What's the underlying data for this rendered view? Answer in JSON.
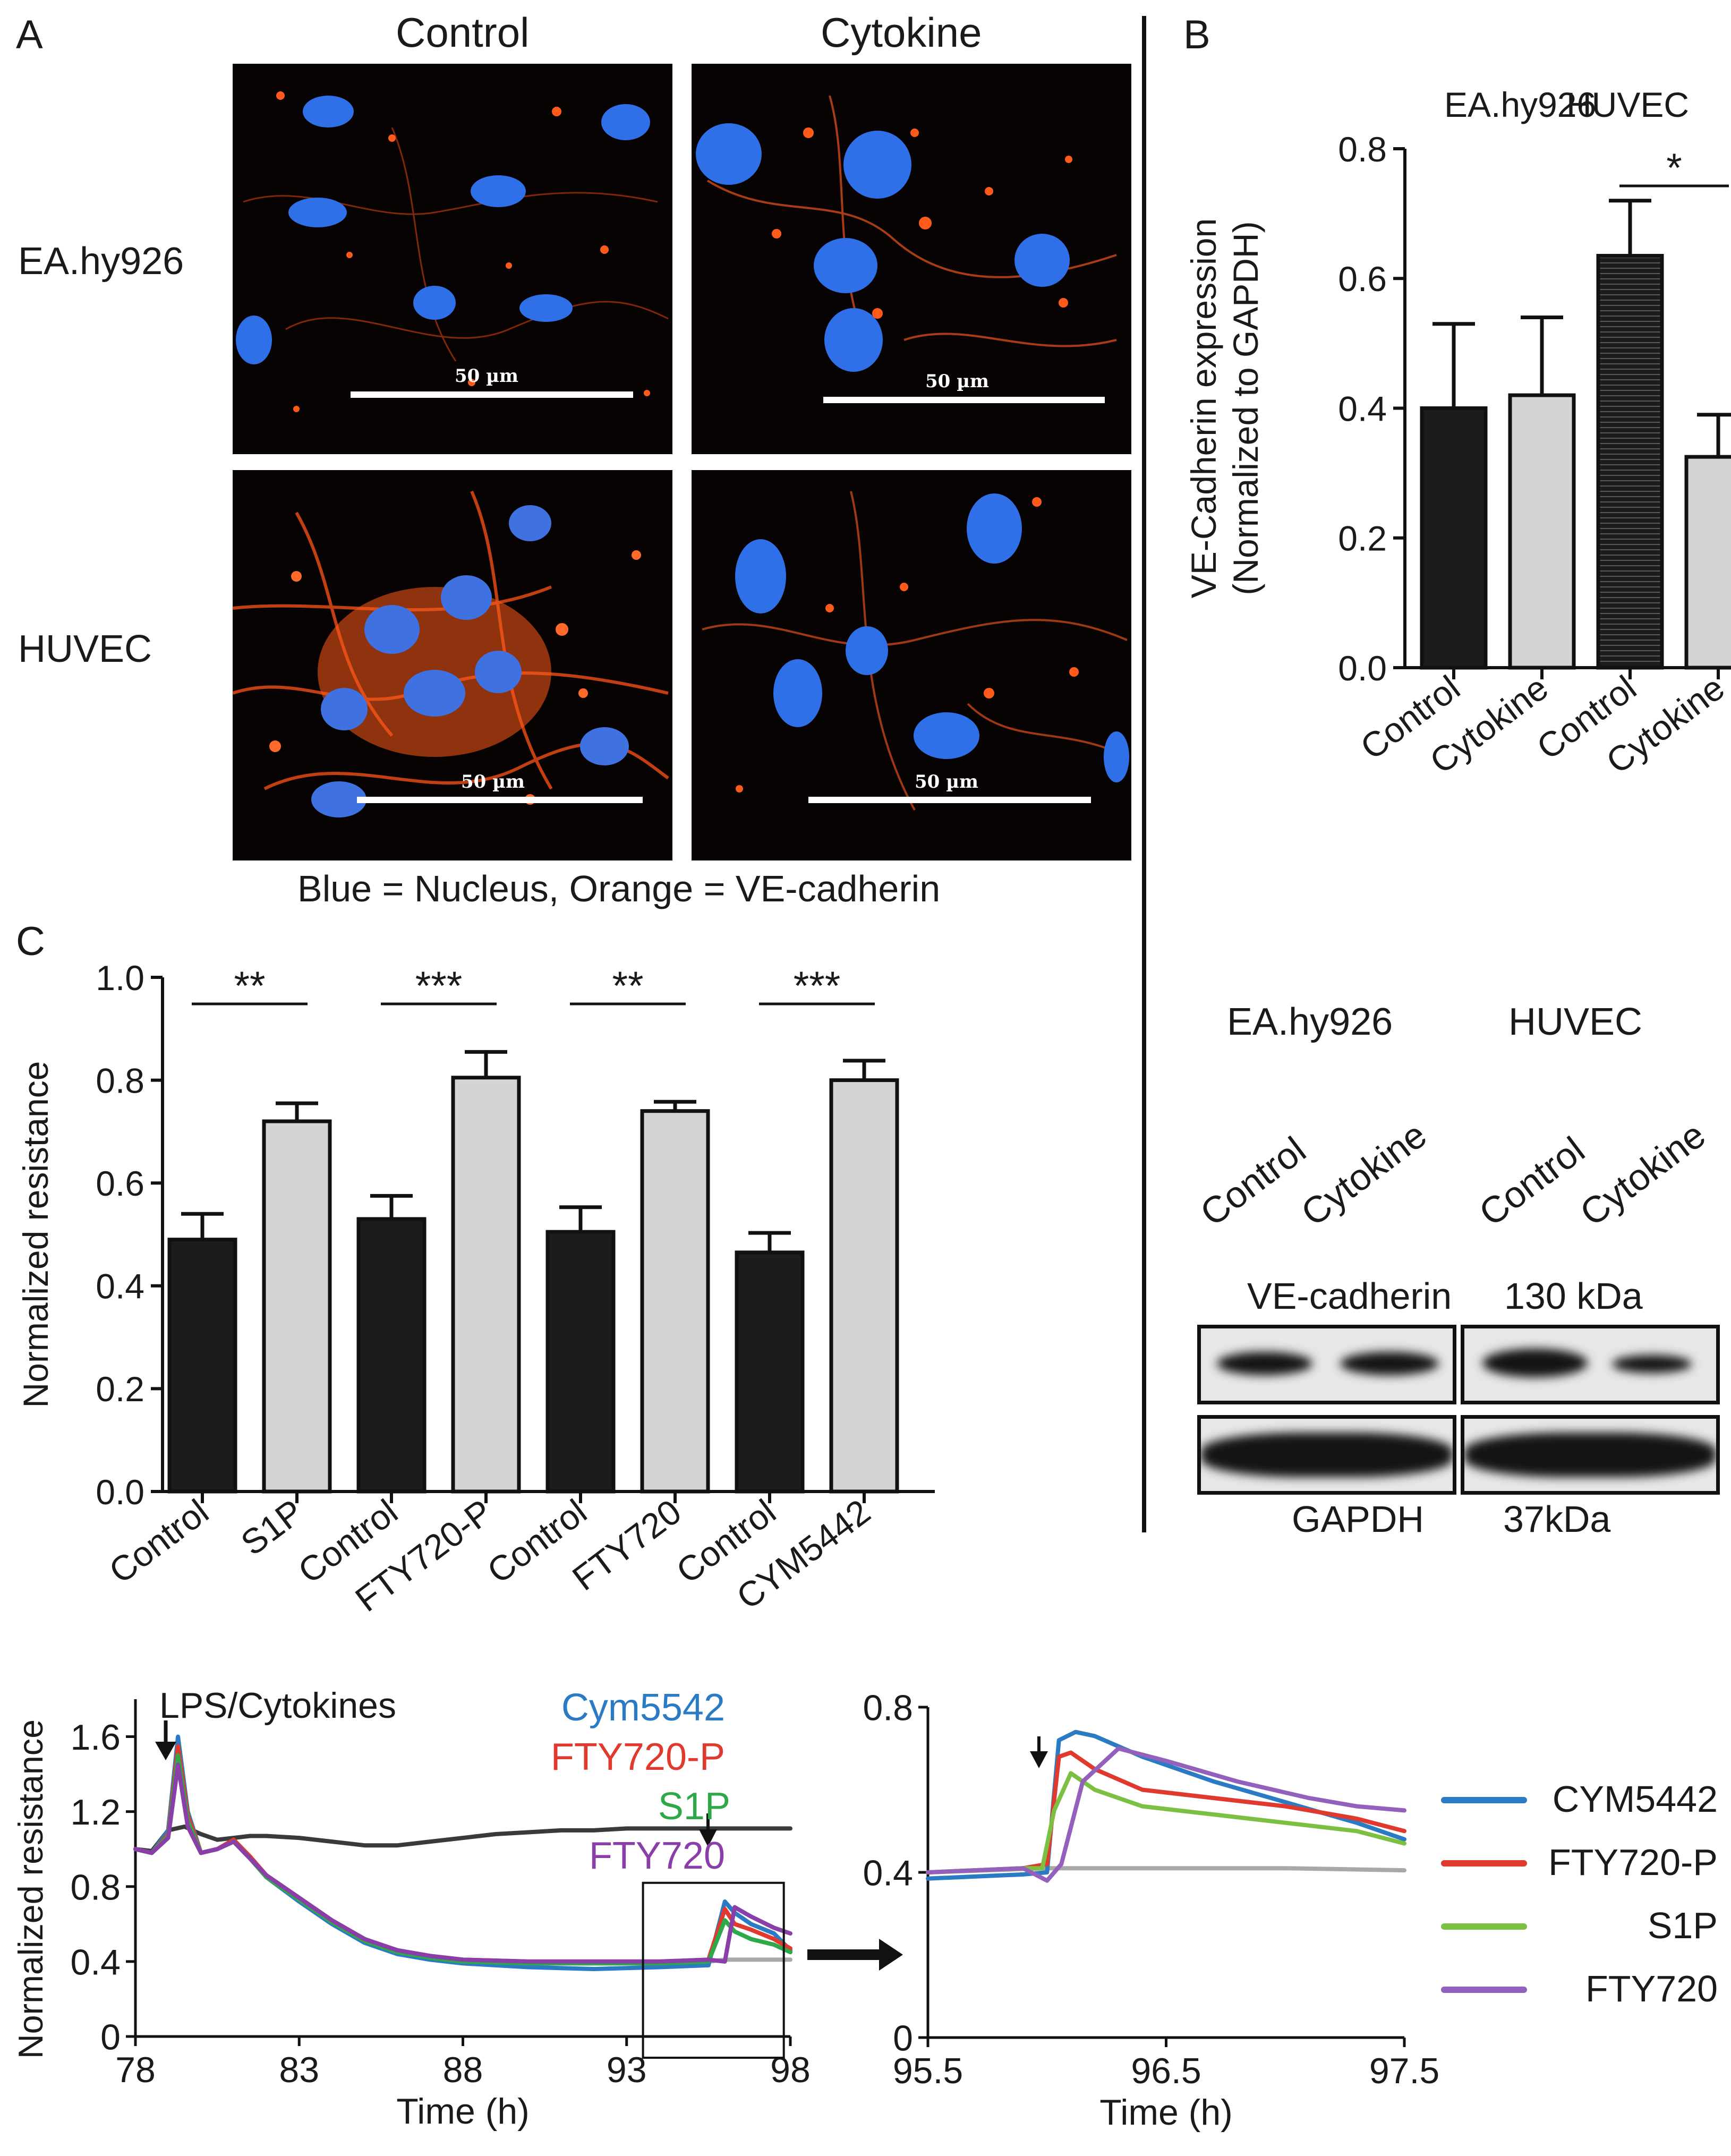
{
  "panel_a": {
    "letter": "A",
    "col_labels": [
      "Control",
      "Cytokine"
    ],
    "row_labels": [
      "EA.hy926",
      "HUVEC"
    ],
    "scale_label": "50 µm",
    "caption": "Blue = Nucleus, Orange = VE-cadherin",
    "colors": {
      "nucleus": "#2f6fe8",
      "cadherin": "#ff5a1a",
      "background": "#070302"
    }
  },
  "panel_b": {
    "letter": "B",
    "blot": {
      "group_labels": [
        "EA.hy926",
        "HUVEC"
      ],
      "lane_labels": [
        "Control",
        "Cytokine",
        "Control",
        "Cytokine"
      ],
      "top_band": "VE-cadherin",
      "top_kda": "130 kDa",
      "bottom_band": "GAPDH",
      "bottom_kda": "37kDa"
    }
  },
  "panel_c": {
    "letter": "C"
  },
  "chart_data": [
    {
      "id": "b-bar",
      "type": "bar",
      "group_labels": [
        "EA.hy926",
        "HUVEC"
      ],
      "categories": [
        "Control",
        "Cytokine",
        "Control",
        "Cytokine"
      ],
      "values": [
        0.4,
        0.42,
        0.635,
        0.325
      ],
      "errors": [
        0.13,
        0.12,
        0.085,
        0.065
      ],
      "fills": [
        "#1c1c1c",
        "#d4d4d4",
        "hatch",
        "#d4d4d4"
      ],
      "ylabel": "VE-Cadherin expression",
      "ylabel2": "(Normalized to GAPDH)",
      "ylim": [
        0,
        0.8
      ],
      "yticks": [
        "0.0",
        "0.2",
        "0.4",
        "0.6",
        "0.8"
      ],
      "significance": [
        {
          "bars": [
            2,
            3
          ],
          "label": "*"
        }
      ]
    },
    {
      "id": "c-bar",
      "type": "bar",
      "categories": [
        "Control",
        "S1P",
        "Control",
        "FTY720-P",
        "Control",
        "FTY720",
        "Control",
        "CYM5442"
      ],
      "values": [
        0.49,
        0.72,
        0.53,
        0.805,
        0.505,
        0.74,
        0.465,
        0.8
      ],
      "errors": [
        0.05,
        0.035,
        0.045,
        0.05,
        0.048,
        0.018,
        0.038,
        0.038
      ],
      "fills": [
        "#1c1c1c",
        "#d4d4d4",
        "#1c1c1c",
        "#d4d4d4",
        "#1c1c1c",
        "#d4d4d4",
        "#1c1c1c",
        "#d4d4d4"
      ],
      "ylabel": "Normalized resistance",
      "ylim": [
        0,
        1.0
      ],
      "yticks": [
        "0.0",
        "0.2",
        "0.4",
        "0.6",
        "0.8",
        "1.0"
      ],
      "significance": [
        {
          "bars": [
            0,
            1
          ],
          "label": "**"
        },
        {
          "bars": [
            2,
            3
          ],
          "label": "***"
        },
        {
          "bars": [
            4,
            5
          ],
          "label": "**"
        },
        {
          "bars": [
            6,
            7
          ],
          "label": "***"
        }
      ]
    },
    {
      "id": "d-line-full",
      "type": "line",
      "xlabel": "Time (h)",
      "ylabel": "Normalized resistance",
      "xlim": [
        78,
        98
      ],
      "ylim": [
        0,
        1.8
      ],
      "xticks": [
        "78",
        "83",
        "88",
        "93",
        "98"
      ],
      "yticks": [
        "0",
        "0.4",
        "0.8",
        "1.2",
        "1.6"
      ],
      "annotation": "LPS/Cytokines",
      "legend_text": [
        "Cym5542",
        "FTY720-P",
        "S1P",
        "FTY720"
      ],
      "legend_colors": [
        "#2a7bc4",
        "#e03a2f",
        "#2fa84a",
        "#8a3fa8"
      ],
      "series": [
        {
          "color": "#2a7bc4",
          "x": [
            78,
            78.5,
            79,
            79.3,
            79.6,
            80,
            80.5,
            81,
            81.5,
            82,
            83,
            84,
            85,
            86,
            87,
            88,
            90,
            92,
            94,
            95.5,
            96,
            96.3,
            96.8,
            97.5,
            98
          ],
          "y": [
            1.0,
            0.98,
            1.1,
            1.6,
            1.2,
            0.98,
            1.0,
            1.05,
            0.95,
            0.85,
            0.72,
            0.6,
            0.5,
            0.44,
            0.41,
            0.39,
            0.37,
            0.36,
            0.37,
            0.38,
            0.72,
            0.66,
            0.6,
            0.55,
            0.46
          ]
        },
        {
          "color": "#e03a2f",
          "x": [
            78,
            78.5,
            79,
            79.3,
            79.6,
            80,
            80.5,
            81,
            81.5,
            82,
            83,
            84,
            85,
            86,
            87,
            88,
            90,
            92,
            94,
            95.5,
            96,
            96.3,
            96.8,
            97.5,
            98
          ],
          "y": [
            1.0,
            0.98,
            1.08,
            1.55,
            1.18,
            0.98,
            1.0,
            1.05,
            0.96,
            0.86,
            0.74,
            0.62,
            0.52,
            0.46,
            0.43,
            0.41,
            0.4,
            0.4,
            0.4,
            0.41,
            0.68,
            0.6,
            0.57,
            0.52,
            0.47
          ]
        },
        {
          "color": "#2fa84a",
          "x": [
            78,
            78.5,
            79,
            79.3,
            79.6,
            80,
            80.5,
            81,
            81.5,
            82,
            83,
            84,
            85,
            86,
            87,
            88,
            90,
            92,
            94,
            95.5,
            96,
            96.3,
            96.8,
            97.5,
            98
          ],
          "y": [
            1.0,
            0.98,
            1.07,
            1.5,
            1.15,
            0.98,
            1.0,
            1.04,
            0.95,
            0.85,
            0.73,
            0.61,
            0.51,
            0.45,
            0.42,
            0.4,
            0.39,
            0.39,
            0.39,
            0.4,
            0.62,
            0.56,
            0.52,
            0.49,
            0.45
          ]
        },
        {
          "color": "#8a3fa8",
          "x": [
            78,
            78.5,
            79,
            79.3,
            79.6,
            80,
            80.5,
            81,
            81.5,
            82,
            83,
            84,
            85,
            86,
            87,
            88,
            90,
            92,
            94,
            95.5,
            96,
            96.3,
            96.8,
            97.5,
            98
          ],
          "y": [
            1.0,
            0.98,
            1.06,
            1.45,
            1.12,
            0.98,
            1.0,
            1.04,
            0.95,
            0.86,
            0.74,
            0.62,
            0.52,
            0.46,
            0.43,
            0.41,
            0.4,
            0.4,
            0.4,
            0.41,
            0.4,
            0.69,
            0.64,
            0.58,
            0.55
          ]
        },
        {
          "color": "#3a3a3a",
          "x": [
            78,
            78.5,
            79,
            79.5,
            80,
            80.5,
            81,
            81.5,
            82,
            83,
            84,
            85,
            86,
            87,
            88,
            89,
            90,
            91,
            92,
            93,
            94,
            95,
            96,
            97,
            98
          ],
          "y": [
            1.0,
            0.99,
            1.1,
            1.12,
            1.08,
            1.05,
            1.06,
            1.07,
            1.07,
            1.06,
            1.04,
            1.02,
            1.02,
            1.04,
            1.06,
            1.08,
            1.09,
            1.1,
            1.1,
            1.11,
            1.11,
            1.11,
            1.11,
            1.11,
            1.11
          ]
        },
        {
          "color": "#a8a8a8",
          "x": [
            95.5,
            96,
            96.5,
            97,
            98
          ],
          "y": [
            0.4,
            0.41,
            0.41,
            0.41,
            0.41
          ]
        }
      ]
    },
    {
      "id": "d-line-zoom",
      "type": "line",
      "xlabel": "Time (h)",
      "xlim": [
        95.5,
        97.5
      ],
      "ylim": [
        0,
        0.8
      ],
      "xticks": [
        "95.5",
        "96.5",
        "97.5"
      ],
      "yticks": [
        "0",
        "0.4",
        "0.8"
      ],
      "legend": [
        "CYM5442",
        "FTY720-P",
        "S1P",
        "FTY720"
      ],
      "series": [
        {
          "name": "CYM5442",
          "color": "#2a7bc4",
          "x": [
            95.5,
            95.9,
            96.0,
            96.05,
            96.12,
            96.2,
            96.4,
            96.7,
            97.0,
            97.3,
            97.5
          ],
          "y": [
            0.385,
            0.395,
            0.4,
            0.72,
            0.74,
            0.73,
            0.68,
            0.62,
            0.57,
            0.52,
            0.48
          ]
        },
        {
          "name": "FTY720-P",
          "color": "#e03a2f",
          "x": [
            95.5,
            95.9,
            96.0,
            96.05,
            96.1,
            96.2,
            96.4,
            96.7,
            97.0,
            97.3,
            97.5
          ],
          "y": [
            0.4,
            0.41,
            0.42,
            0.68,
            0.69,
            0.65,
            0.6,
            0.58,
            0.56,
            0.53,
            0.5
          ]
        },
        {
          "name": "S1P",
          "color": "#7cc043",
          "x": [
            95.5,
            95.9,
            95.98,
            96.03,
            96.1,
            96.2,
            96.4,
            96.7,
            97.0,
            97.3,
            97.5
          ],
          "y": [
            0.4,
            0.41,
            0.41,
            0.55,
            0.64,
            0.6,
            0.56,
            0.54,
            0.52,
            0.5,
            0.47
          ]
        },
        {
          "name": "FTY720",
          "color": "#9360bb",
          "x": [
            95.5,
            95.9,
            96.0,
            96.06,
            96.15,
            96.3,
            96.5,
            96.8,
            97.1,
            97.3,
            97.5
          ],
          "y": [
            0.4,
            0.41,
            0.38,
            0.42,
            0.62,
            0.7,
            0.67,
            0.62,
            0.58,
            0.56,
            0.55
          ]
        },
        {
          "name": "",
          "color": "#a8a8a8",
          "x": [
            95.5,
            96.0,
            96.5,
            97.0,
            97.5
          ],
          "y": [
            0.4,
            0.41,
            0.41,
            0.41,
            0.405
          ]
        }
      ]
    }
  ]
}
